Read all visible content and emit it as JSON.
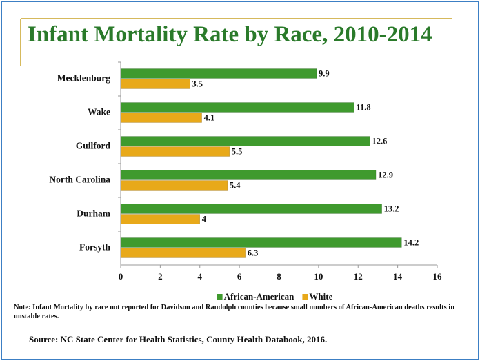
{
  "chart_data": {
    "type": "bar",
    "orientation": "horizontal",
    "title": "Infant Mortality Rate by Race, 2010-2014",
    "categories": [
      "Mecklenburg",
      "Wake",
      "Guilford",
      "North Carolina",
      "Durham",
      "Forsyth"
    ],
    "series": [
      {
        "name": "African-American",
        "color": "#3f9a2e",
        "values": [
          9.9,
          11.8,
          12.6,
          12.9,
          13.2,
          14.2
        ]
      },
      {
        "name": "White",
        "color": "#e8a91a",
        "values": [
          3.5,
          4.1,
          5.5,
          5.4,
          4,
          6.3
        ]
      }
    ],
    "xlim": [
      0,
      16
    ],
    "xticks": [
      0,
      2,
      4,
      6,
      8,
      10,
      12,
      14,
      16
    ],
    "legend": "bottom",
    "note": "Note: Infant Mortality by race not reported for Davidson and Randolph counties because small numbers of African-American deaths results in unstable rates.",
    "source": "Source: NC State Center for Health Statistics, County Health Databook, 2016."
  }
}
